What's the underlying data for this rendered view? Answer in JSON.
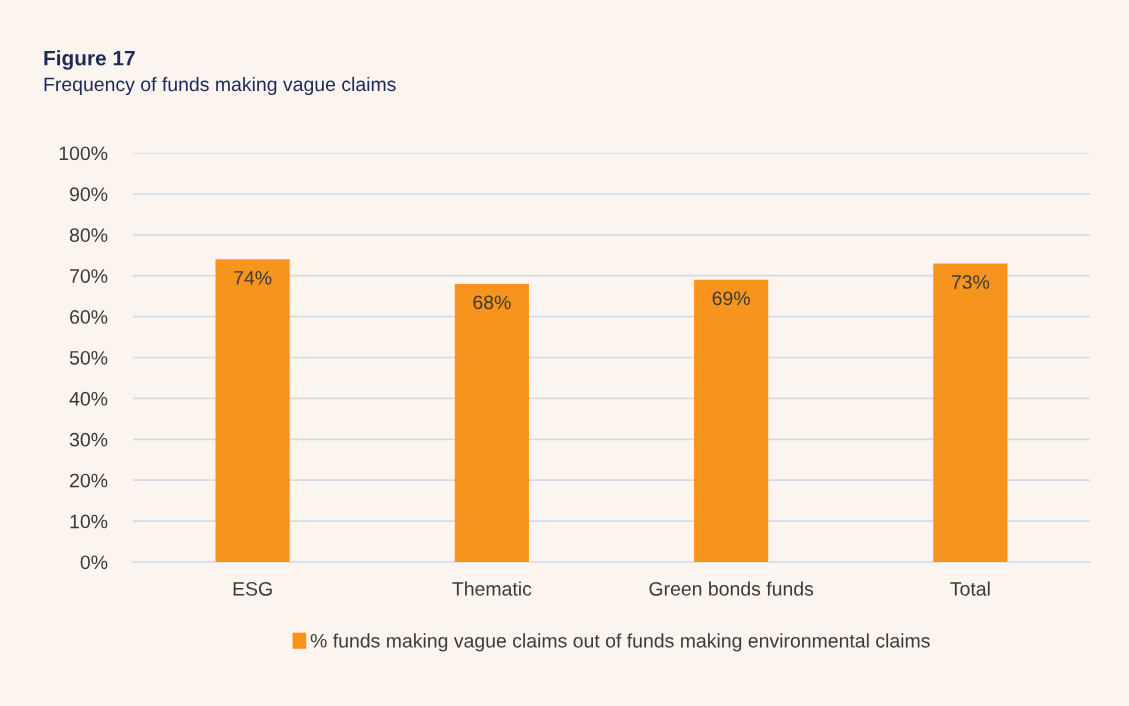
{
  "chart_data": {
    "type": "bar",
    "title": "Figure 17",
    "subtitle": "Frequency of funds making vague claims",
    "categories": [
      "ESG",
      "Thematic",
      "Green bonds funds",
      "Total"
    ],
    "series": [
      {
        "name": "% funds making vague claims out of funds making environmental claims",
        "color": "#f7941d",
        "values": [
          74,
          68,
          69,
          73
        ],
        "value_labels": [
          "74%",
          "68%",
          "69%",
          "73%"
        ]
      }
    ],
    "ylim": [
      0,
      100
    ],
    "yticks": [
      {
        "value": 0,
        "label": "0%"
      },
      {
        "value": 10,
        "label": "10%"
      },
      {
        "value": 20,
        "label": "20%"
      },
      {
        "value": 30,
        "label": "30%"
      },
      {
        "value": 40,
        "label": "40%"
      },
      {
        "value": 50,
        "label": "50%"
      },
      {
        "value": 60,
        "label": "60%"
      },
      {
        "value": 70,
        "label": "70%"
      },
      {
        "value": 80,
        "label": "80%"
      },
      {
        "value": 90,
        "label": "90%"
      },
      {
        "value": 100,
        "label": "100%"
      }
    ],
    "grid": "y",
    "legend": "bottom"
  }
}
